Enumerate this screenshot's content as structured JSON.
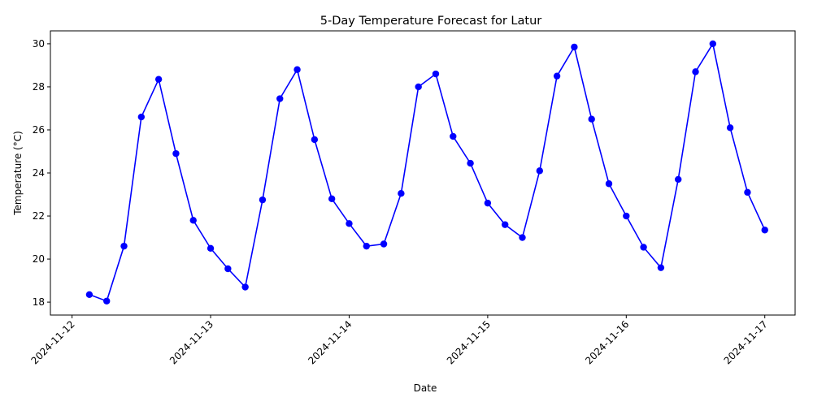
{
  "chart_data": {
    "type": "line",
    "title": "5-Day Temperature Forecast for Latur",
    "xlabel": "Date",
    "ylabel": "Temperature (°C)",
    "x_ticks": [
      "2024-11-12",
      "2024-11-13",
      "2024-11-14",
      "2024-11-15",
      "2024-11-16",
      "2024-11-17"
    ],
    "y_ticks": [
      18,
      20,
      22,
      24,
      26,
      28,
      30
    ],
    "xlim": [
      "2024-11-11T20:15",
      "2024-11-17T05:15"
    ],
    "ylim": [
      17.4,
      30.6
    ],
    "grid": false,
    "legend": false,
    "color": "#0000ff",
    "series": [
      {
        "x": [
          "2024-11-12T03:00",
          "2024-11-12T06:00",
          "2024-11-12T09:00",
          "2024-11-12T12:00",
          "2024-11-12T15:00",
          "2024-11-12T18:00",
          "2024-11-12T21:00",
          "2024-11-13T00:00",
          "2024-11-13T03:00",
          "2024-11-13T06:00",
          "2024-11-13T09:00",
          "2024-11-13T12:00",
          "2024-11-13T15:00",
          "2024-11-13T18:00",
          "2024-11-13T21:00",
          "2024-11-14T00:00",
          "2024-11-14T03:00",
          "2024-11-14T06:00",
          "2024-11-14T09:00",
          "2024-11-14T12:00",
          "2024-11-14T15:00",
          "2024-11-14T18:00",
          "2024-11-14T21:00",
          "2024-11-15T00:00",
          "2024-11-15T03:00",
          "2024-11-15T06:00",
          "2024-11-15T09:00",
          "2024-11-15T12:00",
          "2024-11-15T15:00",
          "2024-11-15T18:00",
          "2024-11-15T21:00",
          "2024-11-16T00:00",
          "2024-11-16T03:00",
          "2024-11-16T06:00",
          "2024-11-16T09:00",
          "2024-11-16T12:00",
          "2024-11-16T15:00",
          "2024-11-16T18:00",
          "2024-11-16T21:00",
          "2024-11-17T00:00"
        ],
        "y": [
          18.35,
          18.05,
          20.6,
          26.6,
          28.35,
          24.9,
          21.8,
          20.5,
          19.55,
          18.7,
          22.75,
          27.45,
          28.8,
          25.55,
          22.8,
          21.65,
          20.6,
          20.7,
          23.05,
          28.0,
          28.6,
          25.7,
          24.45,
          22.6,
          21.6,
          21.0,
          24.1,
          28.5,
          29.85,
          26.5,
          23.5,
          22.0,
          20.55,
          19.6,
          23.7,
          28.7,
          30.0,
          26.1,
          23.1,
          21.35
        ]
      }
    ]
  }
}
